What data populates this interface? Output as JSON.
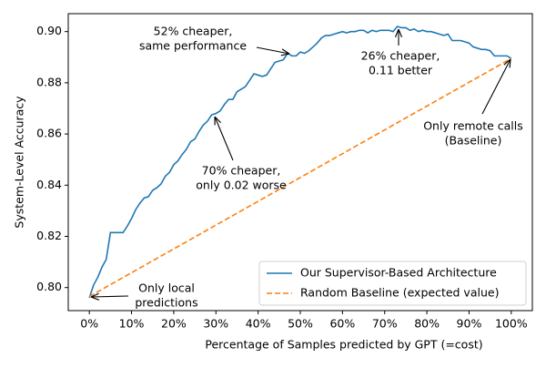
{
  "chart_data": {
    "type": "line",
    "xlabel": "Percentage of Samples predicted by GPT (=cost)",
    "ylabel": "System-Level Accuracy",
    "xlim": [
      -5,
      105
    ],
    "ylim": [
      0.791,
      0.907
    ],
    "xticks": [
      {
        "value": 0,
        "label": "0%"
      },
      {
        "value": 10,
        "label": "10%"
      },
      {
        "value": 20,
        "label": "20%"
      },
      {
        "value": 30,
        "label": "30%"
      },
      {
        "value": 40,
        "label": "40%"
      },
      {
        "value": 50,
        "label": "50%"
      },
      {
        "value": 60,
        "label": "60%"
      },
      {
        "value": 70,
        "label": "70%"
      },
      {
        "value": 80,
        "label": "80%"
      },
      {
        "value": 90,
        "label": "90%"
      },
      {
        "value": 100,
        "label": "100%"
      }
    ],
    "yticks": [
      {
        "value": 0.8,
        "label": "0.80"
      },
      {
        "value": 0.82,
        "label": "0.82"
      },
      {
        "value": 0.84,
        "label": "0.84"
      },
      {
        "value": 0.86,
        "label": "0.86"
      },
      {
        "value": 0.88,
        "label": "0.88"
      },
      {
        "value": 0.9,
        "label": "0.90"
      }
    ],
    "legend": "lower right",
    "series": [
      {
        "name": "Our Supervisor-Based Architecture",
        "color": "#1f77b4",
        "style": "solid",
        "x": [
          0,
          1,
          2,
          3,
          4,
          5,
          6,
          7,
          8,
          9,
          10,
          11,
          12,
          13,
          14,
          15,
          16,
          17,
          18,
          19,
          20,
          21,
          22,
          23,
          24,
          25,
          26,
          27,
          28,
          29,
          30,
          31,
          32,
          33,
          34,
          35,
          36,
          37,
          38,
          39,
          40,
          41,
          42,
          43,
          44,
          45,
          46,
          47,
          48,
          49,
          50,
          51,
          52,
          53,
          54,
          55,
          56,
          57,
          58,
          59,
          60,
          61,
          62,
          63,
          64,
          65,
          66,
          67,
          68,
          69,
          70,
          71,
          72,
          73,
          74,
          75,
          76,
          77,
          78,
          79,
          80,
          81,
          82,
          83,
          84,
          85,
          86,
          87,
          88,
          89,
          90,
          91,
          92,
          93,
          94,
          95,
          96,
          97,
          98,
          99,
          100
        ],
        "values": [
          0.796,
          0.801,
          0.804,
          0.808,
          0.811,
          0.8215,
          0.8215,
          0.8215,
          0.8215,
          0.824,
          0.827,
          0.8305,
          0.833,
          0.835,
          0.8355,
          0.838,
          0.839,
          0.8405,
          0.8435,
          0.845,
          0.848,
          0.8495,
          0.852,
          0.854,
          0.857,
          0.858,
          0.861,
          0.8635,
          0.865,
          0.8675,
          0.868,
          0.869,
          0.8715,
          0.8735,
          0.8735,
          0.8765,
          0.8775,
          0.8785,
          0.881,
          0.8835,
          0.883,
          0.8825,
          0.883,
          0.8855,
          0.888,
          0.8885,
          0.889,
          0.8915,
          0.8905,
          0.8905,
          0.892,
          0.8915,
          0.8925,
          0.894,
          0.8955,
          0.8975,
          0.8985,
          0.8985,
          0.899,
          0.8995,
          0.9,
          0.8995,
          0.9,
          0.9,
          0.9005,
          0.9005,
          0.8995,
          0.9005,
          0.9,
          0.9005,
          0.9005,
          0.9005,
          0.9,
          0.902,
          0.9015,
          0.9015,
          0.9005,
          0.901,
          0.9,
          0.9005,
          0.9,
          0.9,
          0.8995,
          0.899,
          0.8985,
          0.899,
          0.8965,
          0.8965,
          0.8965,
          0.896,
          0.8955,
          0.894,
          0.8935,
          0.893,
          0.893,
          0.8925,
          0.8905,
          0.8905,
          0.8905,
          0.8905,
          0.8895
        ]
      },
      {
        "name": "Random Baseline (expected value)",
        "color": "#ff7f0e",
        "style": "dashed",
        "x": [
          0,
          100
        ],
        "values": [
          0.7965,
          0.8895
        ]
      }
    ],
    "annotations": [
      {
        "text": [
          "52% cheaper,",
          "same performance"
        ]
      },
      {
        "text": [
          "26% cheaper,",
          "0.11 better"
        ]
      },
      {
        "text": [
          "Only remote calls",
          "(Baseline)"
        ]
      },
      {
        "text": [
          "70% cheaper,",
          "only 0.02 worse"
        ]
      },
      {
        "text": [
          "Only local",
          "predictions"
        ]
      }
    ]
  }
}
